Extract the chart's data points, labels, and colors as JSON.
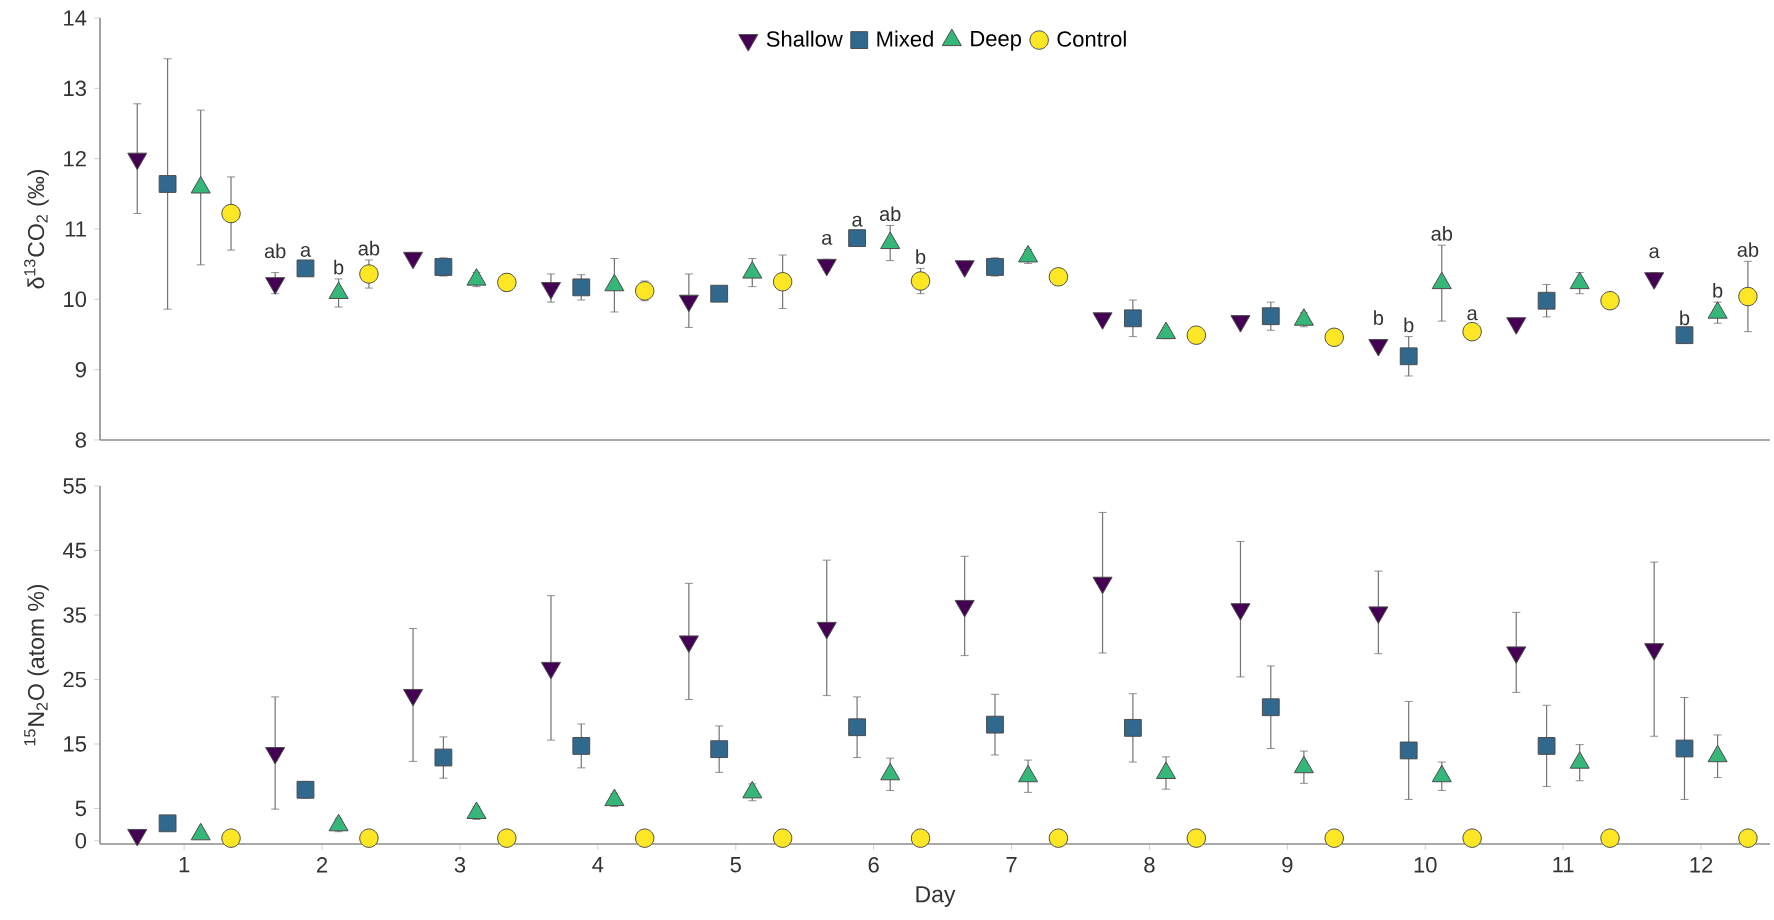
{
  "chart_data": [
    {
      "type": "scatter",
      "ylabel": "δ$^{13}$CO$_{2}$ (‰)",
      "xlim": [
        0.39,
        12.5
      ],
      "xticks": [
        1,
        2,
        3,
        4,
        5,
        6,
        7,
        8,
        9,
        10,
        11,
        12
      ],
      "ylim": [
        8,
        14
      ],
      "yticks": [
        8,
        9,
        10,
        11,
        12,
        13,
        14
      ],
      "legend": "top",
      "tick_labels": "y",
      "series": [
        {
          "name": "Shallow",
          "color": "#440154",
          "marker": "triangle-down",
          "x": [
            0.66,
            1.66,
            2.66,
            3.66,
            4.66,
            5.66,
            6.66,
            7.66,
            8.66,
            9.66,
            10.66,
            11.66
          ],
          "values": [
            12.0,
            10.23,
            10.59,
            10.16,
            9.98,
            10.49,
            10.47,
            9.73,
            9.69,
            9.35,
            9.66,
            10.3
          ],
          "errors": [
            0.78,
            0.15,
            0.05,
            0.2,
            0.38,
            0.08,
            0.05,
            0.05,
            0.05,
            0.08,
            0.05,
            0.08
          ]
        },
        {
          "name": "Mixed",
          "color": "#31688e",
          "marker": "square",
          "x": [
            0.88,
            1.88,
            2.88,
            3.88,
            4.88,
            5.88,
            6.88,
            7.88,
            8.88,
            9.88,
            10.88,
            11.88
          ],
          "values": [
            11.64,
            10.44,
            10.46,
            10.17,
            10.08,
            10.87,
            10.46,
            9.73,
            9.76,
            9.19,
            9.98,
            9.49
          ],
          "errors": [
            1.78,
            0.1,
            0.13,
            0.18,
            0.06,
            0.1,
            0.13,
            0.26,
            0.2,
            0.28,
            0.23,
            0.08
          ]
        },
        {
          "name": "Deep",
          "color": "#35b779",
          "marker": "triangle",
          "x": [
            1.12,
            2.12,
            3.12,
            4.12,
            5.12,
            6.12,
            7.12,
            8.12,
            9.12,
            10.12,
            11.12,
            12.12
          ],
          "values": [
            11.59,
            10.09,
            10.28,
            10.2,
            10.38,
            10.8,
            10.61,
            9.52,
            9.71,
            10.23,
            10.23,
            9.81
          ],
          "errors": [
            1.1,
            0.2,
            0.1,
            0.38,
            0.2,
            0.25,
            0.1,
            0.08,
            0.1,
            0.54,
            0.15,
            0.15
          ]
        },
        {
          "name": "Control",
          "color": "#fde725",
          "marker": "circle",
          "x": [
            1.34,
            2.34,
            3.34,
            4.34,
            5.34,
            6.34,
            7.34,
            8.34,
            9.34,
            10.34,
            11.34,
            12.34
          ],
          "values": [
            11.22,
            10.36,
            10.24,
            10.12,
            10.25,
            10.26,
            10.32,
            9.49,
            9.46,
            9.54,
            9.98,
            10.04
          ],
          "errors": [
            0.52,
            0.2,
            0.12,
            0.14,
            0.38,
            0.18,
            null,
            0.1,
            0.1,
            0.1,
            null,
            0.5
          ]
        }
      ],
      "annotations": [
        {
          "text": "ab",
          "x": 1.66,
          "y": 10.23
        },
        {
          "text": "a",
          "x": 1.88,
          "y": 10.44
        },
        {
          "text": "b",
          "x": 2.12,
          "y": 10.09
        },
        {
          "text": "ab",
          "x": 2.34,
          "y": 10.36
        },
        {
          "text": "a",
          "x": 5.66,
          "y": 10.49
        },
        {
          "text": "a",
          "x": 5.88,
          "y": 10.87
        },
        {
          "text": "ab",
          "x": 6.12,
          "y": 10.8
        },
        {
          "text": "b",
          "x": 6.34,
          "y": 10.26
        },
        {
          "text": "b",
          "x": 9.66,
          "y": 9.35
        },
        {
          "text": "b",
          "x": 9.88,
          "y": 9.19
        },
        {
          "text": "ab",
          "x": 10.12,
          "y": 10.23
        },
        {
          "text": "a",
          "x": 10.34,
          "y": 9.54
        },
        {
          "text": "a",
          "x": 11.66,
          "y": 10.3
        },
        {
          "text": "b",
          "x": 11.88,
          "y": 9.49
        },
        {
          "text": "b",
          "x": 12.12,
          "y": 9.81
        },
        {
          "text": "ab",
          "x": 12.34,
          "y": 10.04
        }
      ]
    },
    {
      "type": "scatter",
      "xlabel": "Day",
      "ylabel": "$^{15}$N$_{2}$O (atom %)",
      "xlim": [
        0.39,
        12.5
      ],
      "xticks": [
        1,
        2,
        3,
        4,
        5,
        6,
        7,
        8,
        9,
        10,
        11,
        12
      ],
      "ylim": [
        -0.5,
        55
      ],
      "yticks": [
        0,
        5,
        15,
        25,
        35,
        45,
        55
      ],
      "series": [
        {
          "color": "#440154",
          "marker": "triangle-down",
          "x": [
            0.66,
            1.66,
            2.66,
            3.66,
            4.66,
            5.66,
            6.66,
            7.66,
            8.66,
            9.66,
            10.66,
            11.66
          ],
          "values": [
            0.9,
            13.6,
            22.6,
            26.8,
            30.9,
            33.0,
            36.4,
            40.0,
            35.9,
            35.4,
            29.2,
            29.7
          ],
          "errors": [
            0.3,
            8.7,
            10.3,
            11.2,
            9,
            10.5,
            7.7,
            10.9,
            10.5,
            6.4,
            6.2,
            13.5
          ]
        },
        {
          "color": "#31688e",
          "marker": "square",
          "x": [
            0.88,
            1.88,
            2.88,
            3.88,
            4.88,
            5.88,
            6.88,
            7.88,
            8.88,
            9.88,
            10.88,
            11.88
          ],
          "values": [
            2.7,
            7.9,
            12.9,
            14.7,
            14.2,
            17.6,
            18.0,
            17.5,
            20.7,
            14.0,
            14.7,
            14.3
          ],
          "errors": [
            1,
            1.3,
            3.2,
            3.4,
            3.6,
            4.7,
            4.7,
            5.3,
            6.4,
            7.6,
            6.3,
            7.9
          ]
        },
        {
          "color": "#35b779",
          "marker": "triangle",
          "x": [
            1.12,
            2.12,
            3.12,
            4.12,
            5.12,
            6.12,
            7.12,
            8.12,
            9.12,
            10.12,
            11.12,
            12.12
          ],
          "values": [
            1.0,
            2.4,
            4.3,
            6.3,
            7.5,
            10.3,
            10.0,
            10.5,
            11.4,
            10.0,
            12.1,
            13.1
          ],
          "errors": [
            0.5,
            1,
            1,
            1,
            1.3,
            2.5,
            2.5,
            2.5,
            2.5,
            2.2,
            2.8,
            3.3
          ]
        },
        {
          "color": "#fde725",
          "marker": "circle",
          "x": [
            1.34,
            2.34,
            3.34,
            4.34,
            5.34,
            6.34,
            7.34,
            8.34,
            9.34,
            10.34,
            11.34,
            12.34
          ],
          "values": [
            0.4,
            0.4,
            0.4,
            0.4,
            0.4,
            0.4,
            0.4,
            0.4,
            0.4,
            0.4,
            0.4,
            0.4
          ],
          "errors": [
            0.2,
            0.2,
            0.2,
            0.2,
            0.2,
            0.2,
            0.2,
            0.2,
            0.2,
            0.2,
            0.2,
            0.2
          ]
        }
      ]
    }
  ]
}
